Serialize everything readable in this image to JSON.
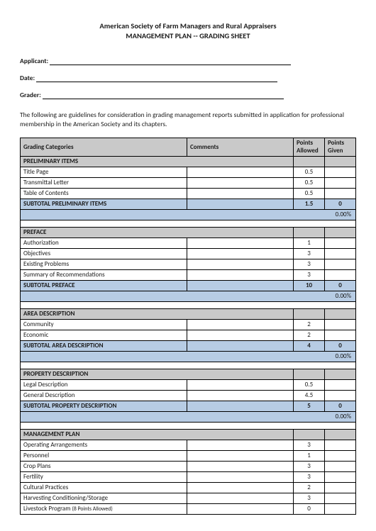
{
  "header": {
    "org": "American Society of Farm Managers and Rural Appraisers",
    "title": "MANAGEMENT PLAN -- GRADING SHEET"
  },
  "fields": {
    "applicant_label": "Applicant:",
    "date_label": "Date:",
    "grader_label": "Grader:"
  },
  "intro": "The following are guidelines for consideration in grading management reports submitted in application for professional membership in the American Society and its chapters.",
  "columns": {
    "categories": "Grading Categories",
    "comments": "Comments",
    "allowed": "Points Allowed",
    "given": "Points Given"
  },
  "sections": [
    {
      "name": "PRELIMINARY ITEMS",
      "items": [
        {
          "label": "Title Page",
          "allowed": "0.5"
        },
        {
          "label": "Transmittal Letter",
          "allowed": "0.5"
        },
        {
          "label": "Table of Contents",
          "allowed": "0.5"
        }
      ],
      "subtotal": {
        "label": "SUBTOTAL PRELIMINARY ITEMS",
        "allowed": "1.5",
        "given": "0"
      },
      "pct": "0.00%"
    },
    {
      "name": "PREFACE",
      "items": [
        {
          "label": "Authorization",
          "allowed": "1"
        },
        {
          "label": "Objectives",
          "allowed": "3"
        },
        {
          "label": "Existing Problems",
          "allowed": "3"
        },
        {
          "label": "Summary of Recommendations",
          "allowed": "3"
        }
      ],
      "subtotal": {
        "label": "SUBTOTAL PREFACE",
        "allowed": "10",
        "given": "0"
      },
      "pct": "0.00%"
    },
    {
      "name": "AREA DESCRIPTION",
      "items": [
        {
          "label": "Community",
          "allowed": "2"
        },
        {
          "label": "Economic",
          "allowed": "2"
        }
      ],
      "subtotal": {
        "label": "SUBTOTAL AREA DESCRIPTION",
        "allowed": "4",
        "given": "0"
      },
      "pct": "0.00%"
    },
    {
      "name": "PROPERTY DESCRIPTION",
      "items": [
        {
          "label": "Legal Description",
          "allowed": "0.5"
        },
        {
          "label": "General Description",
          "allowed": "4.5"
        }
      ],
      "subtotal": {
        "label": "SUBTOTAL PROPERTY DESCRIPTION",
        "allowed": "5",
        "given": "0"
      },
      "pct": "0.00%"
    },
    {
      "name": "MANAGEMENT PLAN",
      "items": [
        {
          "label": "Operating Arrangements",
          "allowed": "3"
        },
        {
          "label": "Personnel",
          "allowed": "1"
        },
        {
          "label": "Crop Plans",
          "allowed": "3"
        },
        {
          "label": "Fertility",
          "allowed": "3"
        },
        {
          "label": "Cultural Practices",
          "allowed": "2"
        },
        {
          "label": "Harvesting Conditioning/Storage",
          "allowed": "3"
        },
        {
          "label": "Livestock Program",
          "note": "(8 Points Allowed)",
          "allowed": "0"
        }
      ]
    }
  ],
  "colors": {
    "section_bg": "#c9c9c9",
    "subtotal_bg": "#b7cce4",
    "border": "#000000",
    "page_bg": "#ffffff"
  }
}
